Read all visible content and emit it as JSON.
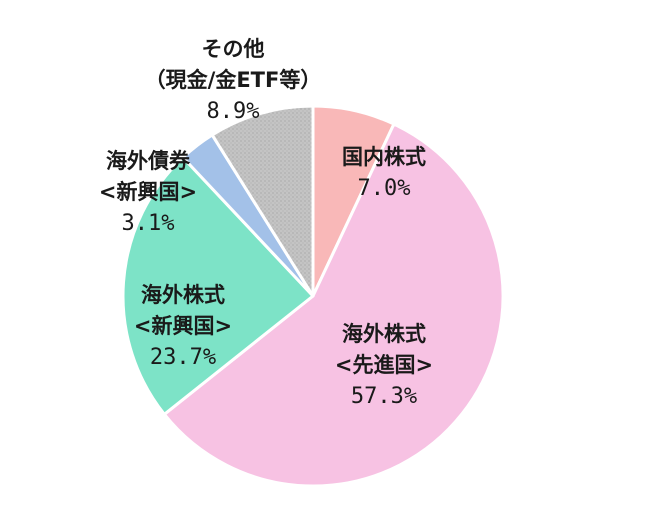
{
  "chart_data": {
    "type": "pie",
    "title": "",
    "start_angle_deg": 0,
    "direction": "clockwise",
    "slices": [
      {
        "name": "国内株式",
        "label_lines": [
          "国内株式"
        ],
        "value": 7.0,
        "value_label": "7.0%",
        "color": "#F9B8B8"
      },
      {
        "name": "海外株式<先進国>",
        "label_lines": [
          "海外株式",
          "<先進国>"
        ],
        "value": 57.3,
        "value_label": "57.3%",
        "color": "#F7C2E3"
      },
      {
        "name": "海外株式<新興国>",
        "label_lines": [
          "海外株式",
          "<新興国>"
        ],
        "value": 23.7,
        "value_label": "23.7%",
        "color": "#7DE3C7"
      },
      {
        "name": "海外債券<新興国>",
        "label_lines": [
          "海外債券",
          "<新興国>"
        ],
        "value": 3.1,
        "value_label": "3.1%",
        "color": "#A3C1E8"
      },
      {
        "name": "その他（現金/金ETF等）",
        "label_lines": [
          "その他",
          "（現金/金ETF等）"
        ],
        "value": 8.9,
        "value_label": "8.9%",
        "color": "#C4C4C4"
      }
    ]
  }
}
